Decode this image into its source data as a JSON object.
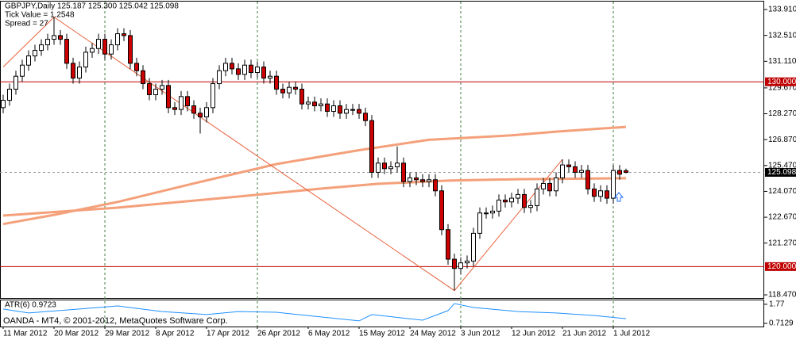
{
  "chart_data": [
    {
      "type": "candlestick",
      "title": "GBPJPY,Daily  125.187 125.300 125.042 125.098",
      "subtitles": [
        "Tick Value = 1.2548",
        "Spread = 27"
      ],
      "categories": [
        "11 Mar 2012",
        null,
        null,
        null,
        null,
        null,
        null,
        null,
        "20 Mar 2012",
        null,
        null,
        null,
        null,
        null,
        null,
        null,
        "29 Mar 2012",
        null,
        null,
        null,
        null,
        null,
        null,
        null,
        "8 Apr 2012",
        null,
        null,
        null,
        null,
        null,
        null,
        null,
        "17 Apr 2012",
        null,
        null,
        null,
        null,
        null,
        null,
        null,
        "26 Apr 2012",
        null,
        null,
        null,
        null,
        null,
        null,
        null,
        "6 May 2012",
        null,
        null,
        null,
        null,
        null,
        null,
        null,
        "15 May 2012",
        null,
        null,
        null,
        null,
        null,
        null,
        null,
        "24 May 2012",
        null,
        null,
        null,
        null,
        null,
        null,
        null,
        "3 Jun 2012",
        null,
        null,
        null,
        null,
        null,
        null,
        null,
        "12 Jun 2012",
        null,
        null,
        null,
        null,
        null,
        null,
        null,
        "21 Jun 2012",
        null,
        null,
        null,
        null,
        null,
        null,
        null,
        "1 Jul 2012",
        null,
        null
      ],
      "open": [
        128.6,
        129.0,
        129.6,
        130.3,
        130.9,
        131.4,
        131.7,
        132.0,
        132.3,
        132.5,
        132.3,
        131.0,
        130.2,
        130.8,
        131.6,
        131.8,
        132.3,
        131.5,
        132.0,
        132.6,
        132.5,
        131.0,
        130.6,
        129.9,
        129.3,
        129.6,
        129.8,
        128.6,
        128.5,
        129.2,
        128.7,
        128.3,
        128.1,
        128.6,
        129.9,
        130.6,
        131.0,
        130.7,
        130.4,
        130.9,
        130.5,
        130.8,
        130.2,
        130.3,
        129.6,
        129.4,
        129.7,
        129.6,
        128.8,
        128.9,
        128.7,
        128.8,
        128.4,
        128.7,
        128.3,
        128.5,
        128.5,
        128.3,
        127.9,
        125.1,
        125.6,
        125.3,
        125.4,
        125.6,
        124.6,
        124.8,
        124.7,
        124.6,
        124.7,
        124.1,
        122.0,
        120.4,
        119.9,
        120.2,
        120.3,
        121.8,
        122.9,
        122.9,
        123.0,
        123.6,
        123.5,
        123.7,
        123.9,
        123.2,
        123.3,
        124.2,
        124.5,
        124.1,
        124.8,
        125.5,
        125.4,
        125.1,
        125.2,
        124.2,
        123.8,
        124.1,
        123.7,
        125.2,
        125.187
      ],
      "high": [
        129.3,
        129.9,
        130.6,
        131.2,
        131.7,
        132.0,
        132.3,
        132.6,
        133.5,
        132.8,
        132.6,
        131.3,
        131.1,
        131.9,
        132.1,
        132.6,
        132.6,
        132.3,
        132.9,
        132.9,
        132.8,
        131.3,
        130.9,
        130.2,
        129.9,
        130.1,
        130.1,
        128.9,
        129.5,
        129.5,
        129.0,
        128.6,
        128.9,
        130.2,
        130.9,
        131.3,
        131.3,
        131.0,
        131.2,
        131.2,
        131.1,
        131.1,
        130.6,
        130.6,
        129.9,
        130.0,
        130.0,
        129.9,
        129.2,
        129.2,
        129.1,
        129.1,
        129.0,
        129.0,
        128.8,
        128.8,
        128.8,
        128.6,
        128.2,
        125.9,
        125.9,
        125.7,
        126.5,
        125.9,
        125.1,
        125.1,
        125.0,
        125.0,
        125.0,
        124.4,
        122.3,
        120.7,
        120.5,
        120.6,
        122.1,
        123.2,
        123.2,
        123.3,
        123.9,
        123.9,
        124.0,
        124.2,
        124.2,
        123.6,
        124.5,
        124.8,
        124.8,
        125.1,
        125.8,
        125.8,
        125.7,
        125.5,
        125.5,
        124.5,
        124.4,
        124.4,
        125.5,
        125.5,
        125.3
      ],
      "low": [
        128.3,
        128.7,
        129.3,
        130.0,
        130.6,
        131.1,
        131.4,
        131.7,
        132.0,
        132.0,
        130.7,
        129.9,
        129.9,
        130.5,
        131.3,
        131.5,
        131.2,
        131.2,
        131.7,
        132.2,
        130.7,
        130.3,
        129.6,
        129.0,
        129.0,
        129.3,
        128.3,
        128.2,
        128.2,
        128.4,
        128.0,
        127.2,
        127.8,
        128.3,
        129.6,
        130.3,
        130.4,
        130.1,
        130.1,
        130.2,
        130.2,
        129.9,
        129.9,
        129.3,
        129.1,
        129.1,
        129.3,
        128.5,
        128.5,
        128.4,
        128.4,
        128.1,
        128.1,
        128.0,
        128.0,
        128.2,
        128.0,
        127.6,
        124.8,
        124.8,
        125.0,
        125.0,
        125.1,
        124.3,
        124.3,
        124.4,
        124.3,
        124.3,
        123.8,
        121.7,
        120.1,
        118.7,
        119.6,
        119.9,
        120.0,
        121.5,
        122.6,
        122.6,
        122.7,
        123.2,
        123.2,
        123.4,
        122.9,
        122.9,
        123.0,
        123.9,
        123.8,
        123.8,
        124.5,
        125.1,
        124.8,
        124.8,
        123.9,
        123.5,
        123.5,
        123.4,
        123.4,
        124.7,
        125.042
      ],
      "close": [
        129.0,
        129.6,
        130.3,
        130.9,
        131.4,
        131.7,
        132.0,
        132.3,
        132.5,
        132.3,
        131.0,
        130.2,
        130.8,
        131.6,
        131.8,
        132.3,
        131.5,
        132.0,
        132.6,
        132.5,
        131.0,
        130.6,
        129.9,
        129.3,
        129.6,
        129.8,
        128.6,
        128.5,
        129.2,
        128.7,
        128.3,
        128.1,
        128.6,
        129.9,
        130.6,
        131.0,
        130.7,
        130.4,
        130.9,
        130.5,
        130.8,
        130.2,
        130.3,
        129.6,
        129.4,
        129.7,
        129.6,
        128.8,
        128.9,
        128.7,
        128.8,
        128.4,
        128.7,
        128.3,
        128.5,
        128.5,
        128.3,
        127.9,
        125.1,
        125.6,
        125.3,
        125.4,
        125.6,
        124.6,
        124.8,
        124.7,
        124.6,
        124.7,
        124.1,
        122.0,
        120.4,
        119.9,
        120.2,
        120.3,
        121.8,
        122.9,
        122.9,
        123.0,
        123.6,
        123.5,
        123.7,
        123.9,
        123.2,
        123.3,
        124.2,
        124.5,
        124.1,
        124.8,
        125.5,
        125.4,
        125.1,
        125.2,
        124.2,
        123.8,
        124.1,
        123.7,
        125.2,
        125.0,
        125.098
      ],
      "up_color": "#ffffff",
      "down_color": "#cc0000",
      "wick_color": "#000000",
      "moving_averages": [
        {
          "color": "#f4a07a",
          "x": [
            0,
            8,
            18,
            30,
            43,
            56,
            67,
            80,
            87,
            98
          ],
          "values": [
            122.3,
            122.8,
            123.5,
            124.5,
            125.55,
            126.3,
            126.86,
            127.1,
            127.3,
            127.56
          ]
        },
        {
          "color": "#f4a07a",
          "x": [
            0,
            18,
            37,
            50,
            59,
            70,
            81,
            98
          ],
          "values": [
            122.76,
            123.19,
            123.79,
            124.22,
            124.48,
            124.65,
            124.73,
            124.78
          ]
        }
      ],
      "zigzag": {
        "color": "#e8603c",
        "x": [
          0,
          8,
          71,
          88
        ],
        "values": [
          130.8,
          133.5,
          118.7,
          125.8
        ]
      },
      "levels": [
        {
          "value": 130,
          "label": "130.000"
        },
        {
          "value": 120,
          "label": "120.000"
        }
      ],
      "level_color": "#c00000",
      "last_price": 125.098,
      "ylim": [
        118.3,
        134.34
      ],
      "yticks": [
        {
          "value": 133.91,
          "label": "133.910"
        },
        {
          "value": 132.51,
          "label": "132.510"
        },
        {
          "value": 131.11,
          "label": "131.110"
        },
        {
          "value": 129.67,
          "label": "129.670"
        },
        {
          "value": 128.27,
          "label": "128.270"
        },
        {
          "value": 126.87,
          "label": "126.870"
        },
        {
          "value": 125.47,
          "label": "125.470"
        },
        {
          "value": 124.07,
          "label": "124.070"
        },
        {
          "value": 122.67,
          "label": "122.670"
        },
        {
          "value": 121.27,
          "label": "121.270"
        },
        {
          "value": 118.47,
          "label": "118.470"
        }
      ],
      "grid": true,
      "grid_color": "#3f7f3f"
    },
    {
      "type": "line",
      "title": "ATR(6) 0.9723",
      "x": [
        0,
        4,
        12,
        18,
        25,
        32,
        37,
        43,
        50,
        56,
        58,
        66,
        70,
        71,
        74,
        81,
        87,
        93,
        98
      ],
      "values": [
        1.51,
        1.29,
        1.51,
        1.68,
        1.37,
        1.2,
        1.37,
        1.33,
        1.07,
        0.85,
        1.2,
        0.89,
        1.42,
        1.81,
        1.59,
        1.37,
        1.29,
        1.15,
        0.9723
      ],
      "color": "#1e90ff",
      "ylim": [
        0.54,
        2.03
      ],
      "yticks": [
        1.77,
        0.7129
      ]
    }
  ],
  "footer": "OANDA - MT4, © 2001-2012, MetaQuotes Software Corp."
}
